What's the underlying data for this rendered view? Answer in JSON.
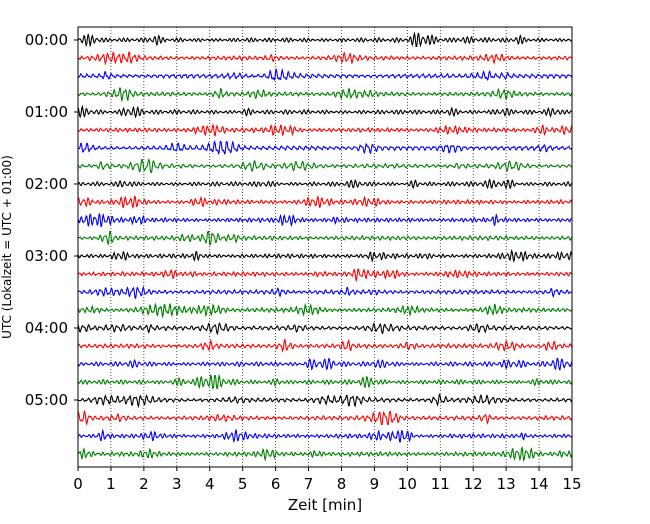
{
  "chart_data": {
    "type": "line",
    "title": "",
    "xlabel": "Zeit  [min]",
    "ylabel": "UTC (Lokalzeit = UTC + 01:00)",
    "xlim": [
      0,
      15
    ],
    "x_ticks": [
      0,
      1,
      2,
      3,
      4,
      5,
      6,
      7,
      8,
      9,
      10,
      11,
      12,
      13,
      14,
      15
    ],
    "x_tick_labels": [
      "0",
      "1",
      "2",
      "3",
      "4",
      "5",
      "6",
      "7",
      "8",
      "9",
      "10",
      "11",
      "12",
      "13",
      "14",
      "15"
    ],
    "y_ticks": [
      "00:00",
      "01:00",
      "02:00",
      "03:00",
      "04:00",
      "05:00"
    ],
    "grid": "vertical dotted lines at each minute",
    "trace_colors": [
      "#000000",
      "#ff0000",
      "#0000ff",
      "#008000"
    ],
    "trace_start_times": [
      "00:00",
      "00:15",
      "00:30",
      "00:45",
      "01:00",
      "01:15",
      "01:30",
      "01:45",
      "02:00",
      "02:15",
      "02:30",
      "02:45",
      "03:00",
      "03:15",
      "03:30",
      "03:45",
      "04:00",
      "04:15",
      "04:30",
      "04:45",
      "05:00",
      "05:15",
      "05:30",
      "05:45"
    ],
    "trace_duration_min": 15,
    "legend": "none"
  }
}
